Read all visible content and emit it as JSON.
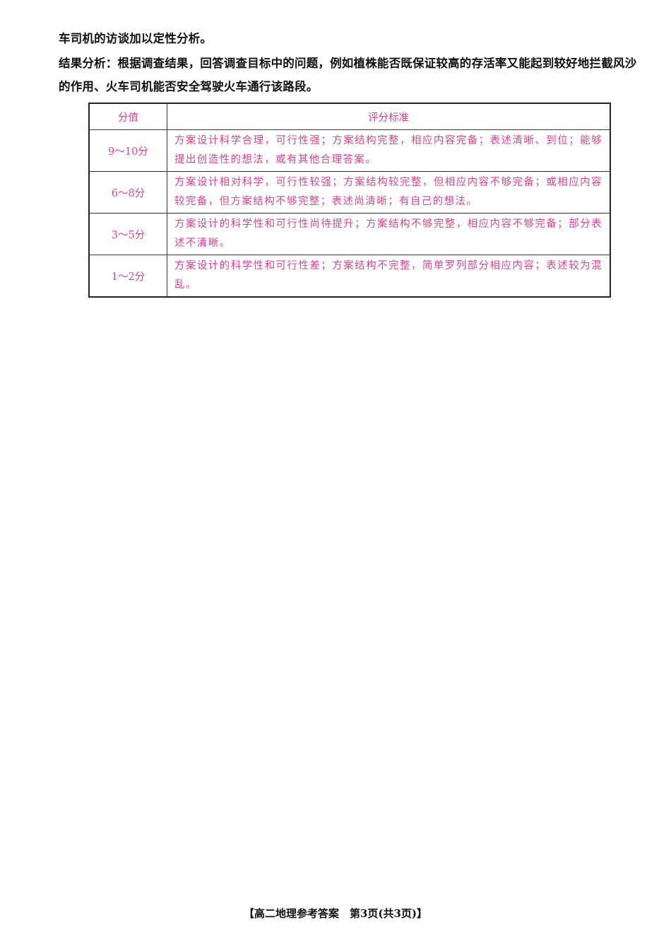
{
  "paragraphs": [
    "车司机的访谈加以定性分析。",
    "结果分析：根据调查结果，回答调查目标中的问题，例如植株能否既保证较高的存活率又能起到较好地拦截风沙的作用、火车司机能否安全驾驶火车通行该路段。"
  ],
  "table": {
    "header": [
      "分值",
      "评分标准"
    ],
    "rows": [
      [
        "9～10分",
        "方案设计科学合理，可行性强；方案结构完整，相应内容完备；表述清晰、到位；能够提出创造性的想法，或有其他合理答案。"
      ],
      [
        "6～8分",
        "方案设计相对科学，可行性较强；方案结构较完整，但相应内容不够完备；或相应内容较完备，但方案结构不够完整；表述尚清晰；有自己的想法。"
      ],
      [
        "3～5分",
        "方案设计的科学性和可行性尚待提升；方案结构不够完整，相应内容不够完备；部分表述不清晰。"
      ],
      [
        "1～2分",
        "方案设计的科学性和可行性差；方案结构不完整，简单罗列部分相应内容；表述较为混乱。"
      ]
    ]
  },
  "footer": "【高二地理参考答案　第3页(共3页)】"
}
